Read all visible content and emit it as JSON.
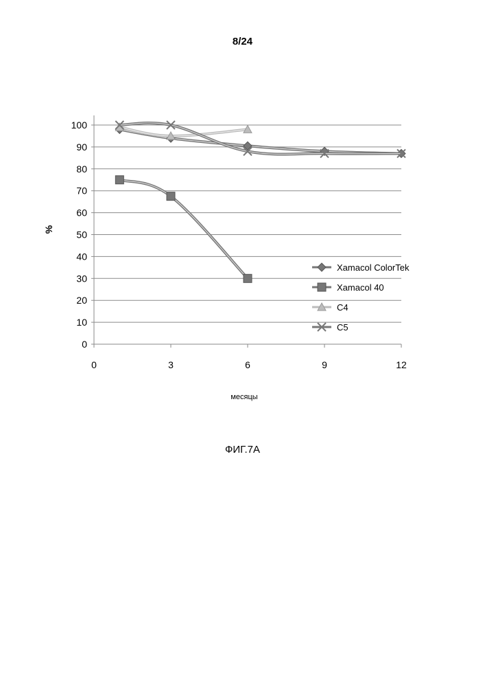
{
  "page_number": "8/24",
  "figure_caption": "ФИГ.7А",
  "chart_data": {
    "type": "line",
    "title": "",
    "xlabel": "месяцы",
    "ylabel": "%",
    "x_ticks": [
      "0",
      "3",
      "6",
      "9",
      "12"
    ],
    "y_ticks": [
      "0",
      "10",
      "20",
      "30",
      "40",
      "50",
      "60",
      "70",
      "80",
      "90",
      "100"
    ],
    "xlim": [
      0,
      12
    ],
    "ylim": [
      0,
      100
    ],
    "grid": "horizontal",
    "legend_position": "right",
    "series": [
      {
        "name": "Xamacol ColorTek",
        "marker": "diamond",
        "color": "#777777",
        "points": [
          [
            1,
            98
          ],
          [
            3,
            94
          ],
          [
            6,
            90.5
          ],
          [
            9,
            88
          ],
          [
            12,
            87
          ]
        ]
      },
      {
        "name": "Xamacol 40",
        "marker": "square",
        "color": "#777777",
        "points": [
          [
            1,
            75
          ],
          [
            3,
            67.5
          ],
          [
            6,
            30
          ]
        ]
      },
      {
        "name": "C4",
        "marker": "triangle",
        "color": "#bcbcbc",
        "points": [
          [
            1,
            99
          ],
          [
            3,
            95
          ],
          [
            6,
            98
          ]
        ]
      },
      {
        "name": "C5",
        "marker": "x",
        "color": "#777777",
        "points": [
          [
            1,
            100
          ],
          [
            3,
            100
          ],
          [
            6,
            88
          ],
          [
            9,
            87
          ],
          [
            12,
            87
          ]
        ]
      }
    ]
  }
}
